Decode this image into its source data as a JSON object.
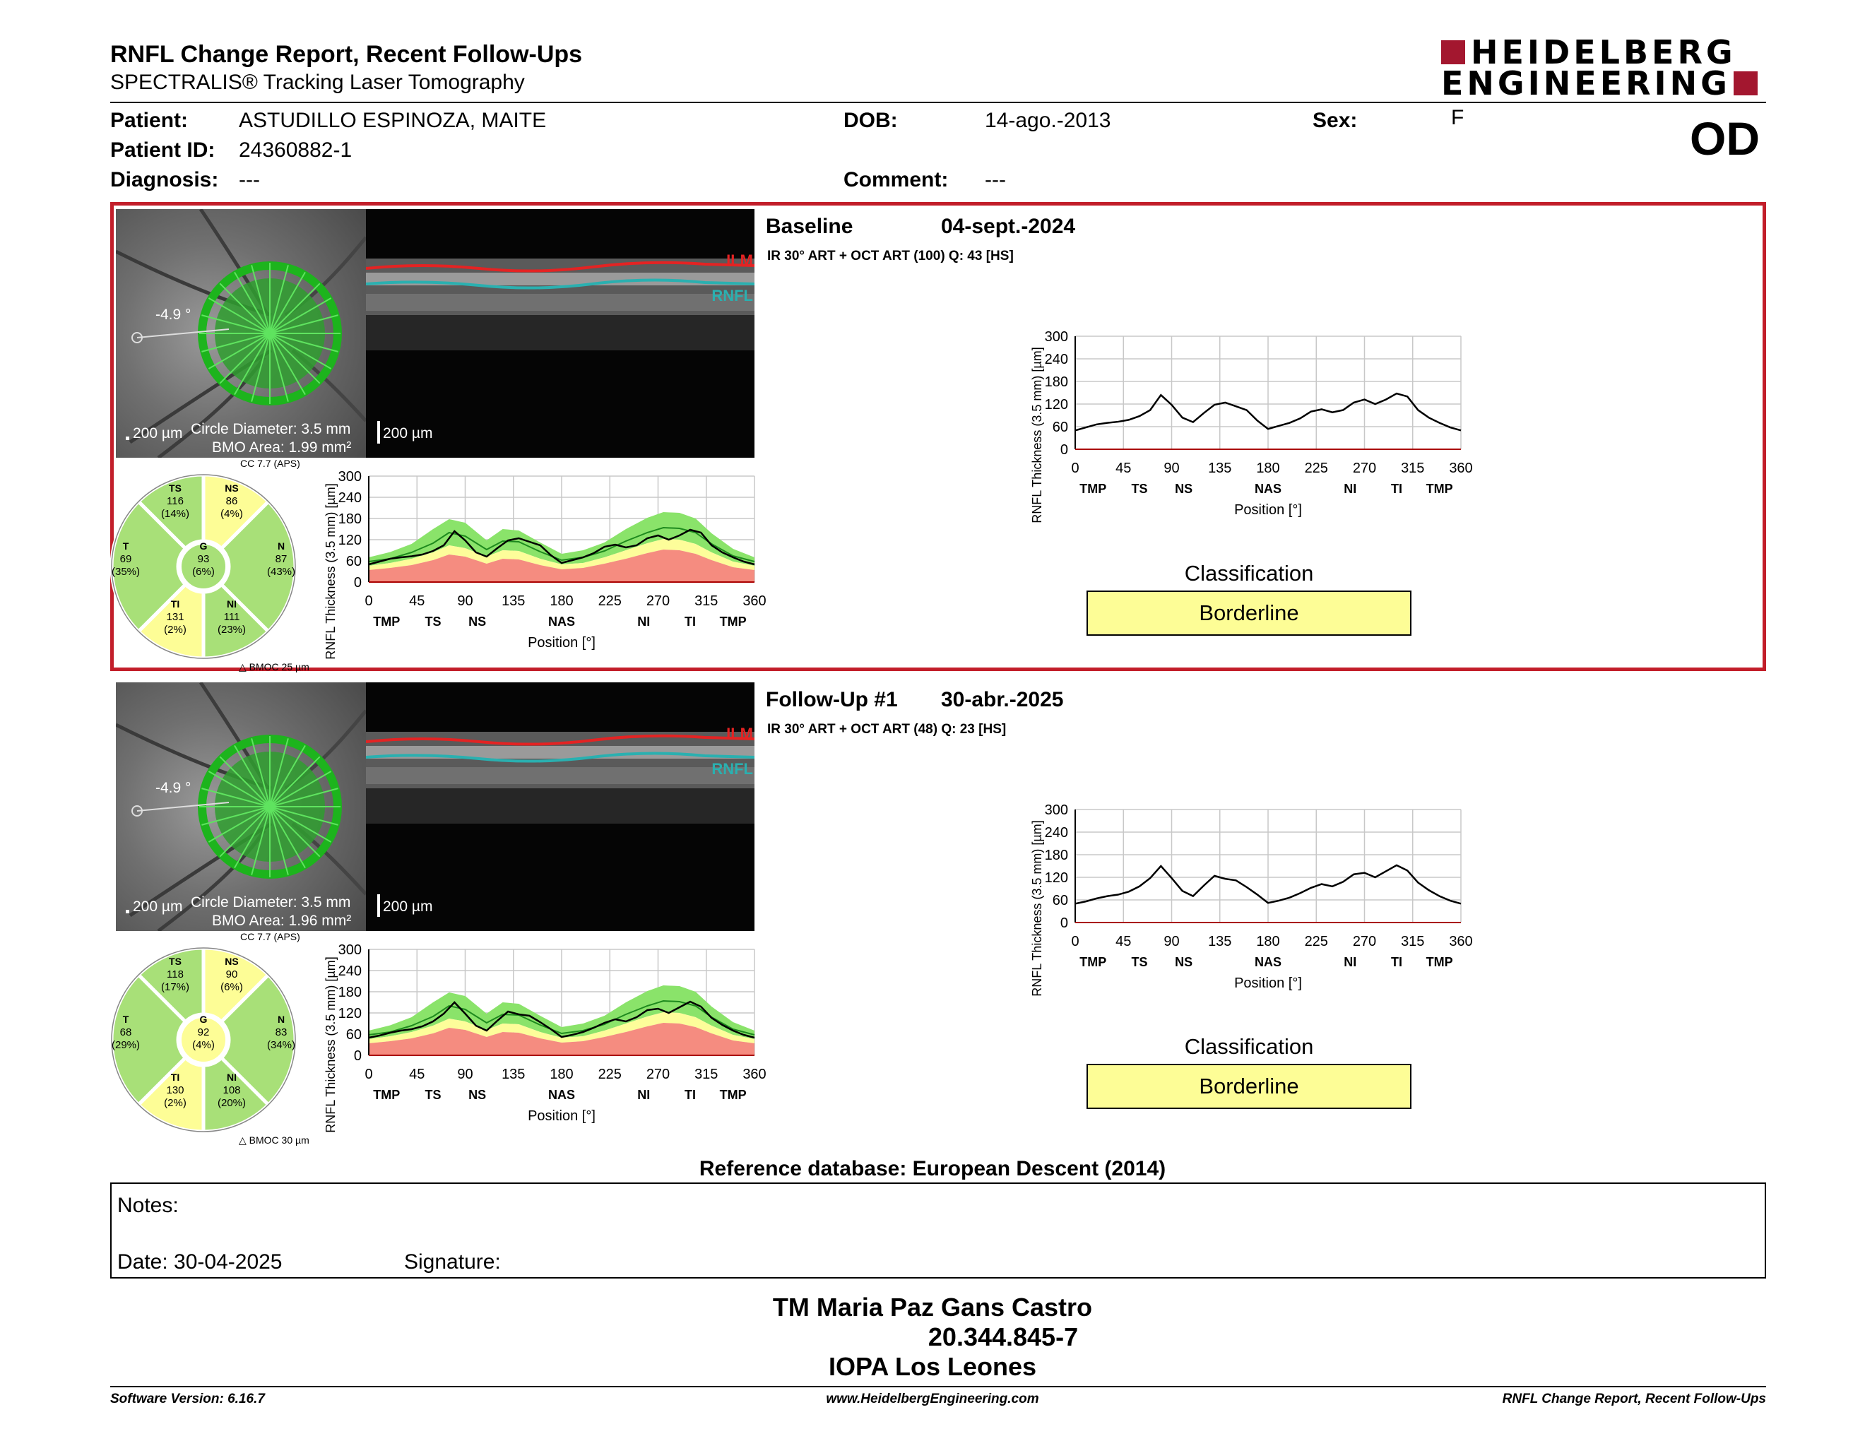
{
  "header": {
    "title": "RNFL Change Report, Recent Follow-Ups",
    "subtitle": "SPECTRALIS® Tracking Laser Tomography",
    "logo_line1": "HEIDELBERG",
    "logo_line2": "ENGINEERING",
    "eye": "OD"
  },
  "patient": {
    "patient_label": "Patient:",
    "patient_value": "ASTUDILLO ESPINOZA, MAITE",
    "id_label": "Patient ID:",
    "id_value": "24360882-1",
    "diagnosis_label": "Diagnosis:",
    "diagnosis_value": "---",
    "dob_label": "DOB:",
    "dob_value": "14-ago.-2013",
    "comment_label": "Comment:",
    "comment_value": "---",
    "sex_label": "Sex:",
    "sex_value": "F"
  },
  "common": {
    "ilm": "ILM",
    "rnfl": "RNFL",
    "scale": "200 µm",
    "circle_diameter": "Circle Diameter: 3.5 mm",
    "cc": "CC 7.7 (APS)",
    "angle": "-4.9 °",
    "y_label": "RNFL Thickness (3.5 mm) [µm]",
    "x_label": "Position [°]",
    "y_ticks": [
      "300",
      "240",
      "180",
      "120",
      "60",
      "0"
    ],
    "x_ticks": [
      "0",
      "45",
      "90",
      "135",
      "180",
      "225",
      "270",
      "315",
      "360"
    ],
    "regions": [
      "TMP",
      "TS",
      "NS",
      "NAS",
      "NI",
      "TI",
      "TMP"
    ],
    "classification_title": "Classification",
    "sector_labels": [
      "TS",
      "NS",
      "T",
      "G",
      "N",
      "TI",
      "NI"
    ]
  },
  "baseline": {
    "name": "Baseline",
    "date": "04-sept.-2024",
    "acq": "IR 30° ART + OCT ART (100) Q: 43 [HS]",
    "bmo": "BMO Area: 1.99 mm²",
    "bmoc": "BMOC 25 µm",
    "classification": "Borderline",
    "sectors": {
      "TS": {
        "value": "116",
        "pct": "(14%)"
      },
      "NS": {
        "value": "86",
        "pct": "(4%)"
      },
      "T": {
        "value": "69",
        "pct": "(35%)"
      },
      "G": {
        "value": "93",
        "pct": "(6%)"
      },
      "N": {
        "value": "87",
        "pct": "(43%)"
      },
      "TI": {
        "value": "131",
        "pct": "(2%)"
      },
      "NI": {
        "value": "111",
        "pct": "(23%)"
      }
    }
  },
  "followup": {
    "name": "Follow-Up #1",
    "date": "30-abr.-2025",
    "acq": "IR 30° ART + OCT ART (48) Q: 23 [HS]",
    "bmo": "BMO Area: 1.96 mm²",
    "bmoc": "BMOC 30 µm",
    "classification": "Borderline",
    "sectors": {
      "TS": {
        "value": "118",
        "pct": "(17%)"
      },
      "NS": {
        "value": "90",
        "pct": "(6%)"
      },
      "T": {
        "value": "68",
        "pct": "(29%)"
      },
      "G": {
        "value": "92",
        "pct": "(4%)"
      },
      "N": {
        "value": "83",
        "pct": "(34%)"
      },
      "TI": {
        "value": "130",
        "pct": "(2%)"
      },
      "NI": {
        "value": "108",
        "pct": "(20%)"
      }
    }
  },
  "chart_data": [
    {
      "type": "line",
      "ylim": [
        0,
        300
      ],
      "xlim": [
        0,
        360
      ],
      "xlabel": "Position [°]",
      "ylabel": "RNFL Thickness (3.5 mm) [µm]",
      "series": [
        {
          "x": [
            0,
            10,
            20,
            30,
            40,
            50,
            60,
            70,
            80,
            90,
            100,
            110,
            120,
            130,
            140,
            150,
            160,
            170,
            180,
            190,
            200,
            210,
            220,
            230,
            240,
            250,
            260,
            270,
            280,
            290,
            300,
            310,
            320,
            330,
            340,
            350,
            360
          ],
          "values": [
            50,
            58,
            66,
            70,
            73,
            78,
            88,
            104,
            144,
            118,
            84,
            72,
            96,
            118,
            124,
            114,
            104,
            76,
            54,
            62,
            70,
            82,
            100,
            106,
            98,
            104,
            124,
            132,
            120,
            132,
            148,
            140,
            104,
            84,
            70,
            58,
            50
          ]
        }
      ]
    },
    {
      "type": "line",
      "ylim": [
        0,
        300
      ],
      "xlim": [
        0,
        360
      ],
      "xlabel": "Position [°]",
      "ylabel": "RNFL Thickness (3.5 mm) [µm]",
      "series": [
        {
          "x": [
            0,
            10,
            20,
            30,
            40,
            50,
            60,
            70,
            80,
            90,
            100,
            110,
            120,
            130,
            140,
            150,
            160,
            170,
            180,
            190,
            200,
            210,
            220,
            230,
            240,
            250,
            260,
            270,
            280,
            290,
            300,
            310,
            320,
            330,
            340,
            350,
            360
          ],
          "values": [
            50,
            56,
            64,
            70,
            74,
            82,
            96,
            118,
            150,
            118,
            84,
            70,
            98,
            124,
            116,
            112,
            94,
            74,
            52,
            58,
            66,
            78,
            92,
            102,
            96,
            108,
            128,
            132,
            120,
            136,
            152,
            138,
            106,
            86,
            70,
            58,
            50
          ]
        }
      ]
    }
  ]
}
